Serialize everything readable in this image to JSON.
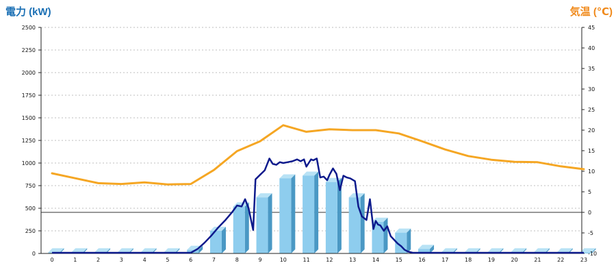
{
  "chart_data": {
    "type": "bar+line",
    "left_axis": {
      "title": "電力 (kW)",
      "color": "#1a6fb4",
      "range": [
        0,
        2500
      ],
      "ticks": [
        0,
        250,
        500,
        750,
        1000,
        1250,
        1500,
        1750,
        2000,
        2250,
        2500
      ]
    },
    "right_axis": {
      "title": "気温 (℃)",
      "color": "#f08a1c",
      "range": [
        -10,
        45
      ],
      "ticks": [
        -10,
        -5,
        0,
        5,
        10,
        15,
        20,
        25,
        30,
        35,
        40,
        45
      ]
    },
    "categories": [
      "0",
      "1",
      "2",
      "3",
      "4",
      "5",
      "6",
      "7",
      "8",
      "9",
      "10",
      "11",
      "12",
      "13",
      "14",
      "15",
      "16",
      "17",
      "18",
      "19",
      "20",
      "21",
      "22",
      "23"
    ],
    "grid": "horizontal-dashed",
    "bars": {
      "axis": "left",
      "color": "#8ecdee",
      "values": [
        0,
        0,
        0,
        0,
        0,
        0,
        40,
        250,
        520,
        620,
        830,
        860,
        790,
        620,
        350,
        230,
        50,
        0,
        0,
        0,
        0,
        0,
        0,
        0
      ]
    },
    "power_line": {
      "axis": "left",
      "color": "#0d1a8c",
      "x": [
        6.0,
        6.3,
        6.6,
        6.9,
        7.2,
        7.5,
        7.8,
        8.0,
        8.2,
        8.35,
        8.5,
        8.6,
        8.7,
        8.8,
        9.0,
        9.2,
        9.4,
        9.55,
        9.7,
        9.85,
        10.0,
        10.2,
        10.4,
        10.6,
        10.75,
        10.9,
        11.0,
        11.1,
        11.2,
        11.3,
        11.45,
        11.6,
        11.75,
        11.9,
        12.0,
        12.15,
        12.3,
        12.45,
        12.6,
        12.75,
        12.9,
        13.1,
        13.25,
        13.4,
        13.5,
        13.6,
        13.75,
        13.9,
        14.0,
        14.1,
        14.2,
        14.35,
        14.5,
        14.65,
        14.8,
        14.95,
        15.1,
        15.25,
        15.4,
        15.6,
        15.8,
        16.0,
        16.2,
        16.5,
        17.0,
        18.0,
        19.0,
        20.0,
        21.0,
        22.0,
        23.0
      ],
      "values": [
        0,
        50,
        120,
        200,
        290,
        370,
        460,
        530,
        520,
        600,
        500,
        380,
        260,
        820,
        870,
        920,
        1050,
        990,
        980,
        1010,
        1000,
        1010,
        1020,
        1040,
        1020,
        1040,
        960,
        1000,
        1040,
        1030,
        1050,
        840,
        850,
        810,
        870,
        940,
        880,
        700,
        860,
        840,
        830,
        800,
        520,
        410,
        390,
        370,
        600,
        270,
        360,
        320,
        310,
        250,
        300,
        190,
        150,
        110,
        80,
        40,
        20,
        0,
        0,
        0,
        0,
        0,
        0,
        0,
        0,
        0,
        0,
        0,
        0
      ]
    },
    "temperature_line": {
      "axis": "right",
      "color": "#f5a623",
      "x": [
        0,
        1,
        2,
        3,
        4,
        5,
        6,
        7,
        8,
        9,
        10,
        11,
        12,
        13,
        14,
        15,
        16,
        17,
        18,
        19,
        20,
        21,
        22,
        23
      ],
      "values": [
        9.5,
        8.3,
        7.1,
        6.9,
        7.3,
        6.8,
        6.9,
        10.3,
        14.9,
        17.3,
        21.2,
        19.6,
        20.2,
        20.0,
        20.0,
        19.2,
        17.3,
        15.3,
        13.7,
        12.8,
        12.3,
        12.2,
        11.2,
        10.5
      ]
    }
  }
}
